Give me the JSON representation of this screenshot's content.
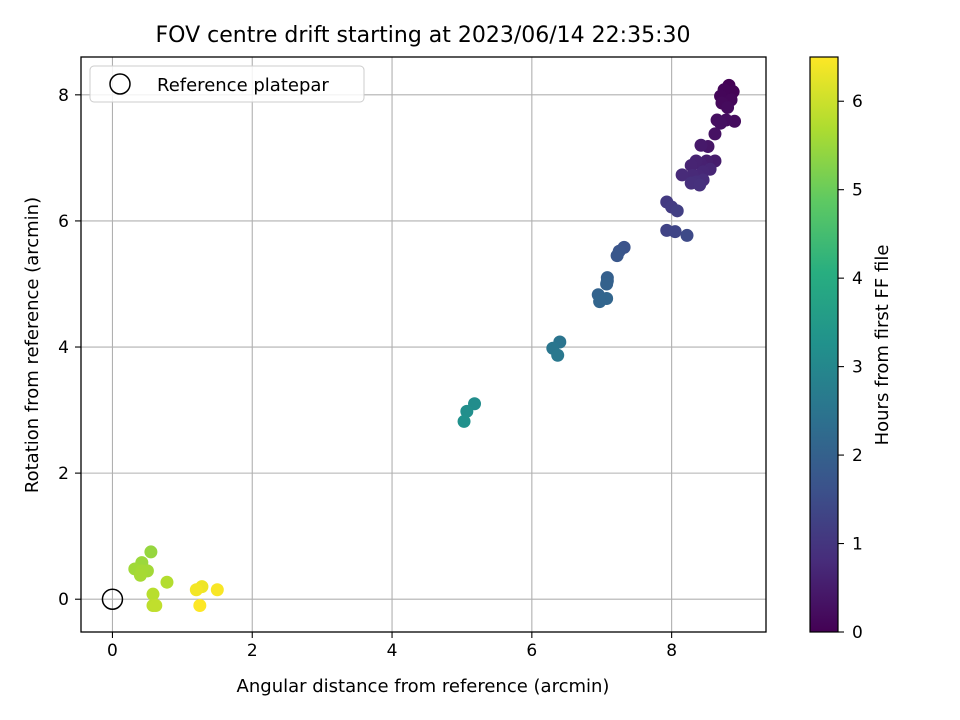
{
  "chart_data": {
    "type": "scatter",
    "title": "FOV centre drift starting at 2023/06/14 22:35:30",
    "xlabel": "Angular distance from reference (arcmin)",
    "ylabel": "Rotation from reference (arcmin)",
    "xlim": [
      -0.45,
      9.35
    ],
    "ylim": [
      -0.52,
      8.6
    ],
    "xticks": [
      0,
      2,
      4,
      6,
      8
    ],
    "yticks": [
      0,
      2,
      4,
      6,
      8
    ],
    "grid": true,
    "legend": {
      "position": "upper-left",
      "label": "Reference platepar"
    },
    "reference_point": {
      "x": 0,
      "y": 0
    },
    "colorbar": {
      "label": "Hours from first FF file",
      "range": [
        0,
        6.5
      ],
      "ticks": [
        0,
        1,
        2,
        3,
        4,
        5,
        6
      ],
      "colormap": "viridis"
    },
    "series": [
      {
        "points": [
          {
            "x": 8.82,
            "y": 8.15,
            "c": 0.02
          },
          {
            "x": 8.88,
            "y": 8.05,
            "c": 0.05
          },
          {
            "x": 8.75,
            "y": 8.08,
            "c": 0.08
          },
          {
            "x": 8.7,
            "y": 7.98,
            "c": 0.1
          },
          {
            "x": 8.85,
            "y": 7.92,
            "c": 0.12
          },
          {
            "x": 8.72,
            "y": 7.87,
            "c": 0.15
          },
          {
            "x": 8.8,
            "y": 7.8,
            "c": 0.18
          },
          {
            "x": 8.9,
            "y": 7.58,
            "c": 0.2
          },
          {
            "x": 8.78,
            "y": 7.6,
            "c": 0.22
          },
          {
            "x": 8.65,
            "y": 7.6,
            "c": 0.25
          },
          {
            "x": 8.7,
            "y": 7.55,
            "c": 0.28
          },
          {
            "x": 8.62,
            "y": 7.38,
            "c": 0.32
          },
          {
            "x": 8.52,
            "y": 7.18,
            "c": 0.38
          },
          {
            "x": 8.42,
            "y": 7.2,
            "c": 0.45
          },
          {
            "x": 8.62,
            "y": 6.95,
            "c": 0.5
          },
          {
            "x": 8.5,
            "y": 6.95,
            "c": 0.55
          },
          {
            "x": 8.42,
            "y": 6.9,
            "c": 0.6
          },
          {
            "x": 8.35,
            "y": 6.95,
            "c": 0.62
          },
          {
            "x": 8.28,
            "y": 6.88,
            "c": 0.65
          },
          {
            "x": 8.55,
            "y": 6.82,
            "c": 0.68
          },
          {
            "x": 8.45,
            "y": 6.78,
            "c": 0.7
          },
          {
            "x": 8.38,
            "y": 6.72,
            "c": 0.72
          },
          {
            "x": 8.3,
            "y": 6.72,
            "c": 0.75
          },
          {
            "x": 8.15,
            "y": 6.73,
            "c": 0.78
          },
          {
            "x": 8.45,
            "y": 6.65,
            "c": 0.82
          },
          {
            "x": 8.35,
            "y": 6.62,
            "c": 0.85
          },
          {
            "x": 8.28,
            "y": 6.6,
            "c": 0.88
          },
          {
            "x": 8.4,
            "y": 6.57,
            "c": 0.9
          },
          {
            "x": 7.93,
            "y": 6.3,
            "c": 1.1
          },
          {
            "x": 8.0,
            "y": 6.22,
            "c": 1.15
          },
          {
            "x": 8.08,
            "y": 6.16,
            "c": 1.2
          },
          {
            "x": 7.93,
            "y": 5.85,
            "c": 1.3
          },
          {
            "x": 8.05,
            "y": 5.83,
            "c": 1.35
          },
          {
            "x": 8.22,
            "y": 5.77,
            "c": 1.45
          },
          {
            "x": 7.32,
            "y": 5.58,
            "c": 1.65
          },
          {
            "x": 7.25,
            "y": 5.52,
            "c": 1.7
          },
          {
            "x": 7.22,
            "y": 5.45,
            "c": 1.75
          },
          {
            "x": 7.08,
            "y": 5.1,
            "c": 1.95
          },
          {
            "x": 7.08,
            "y": 5.05,
            "c": 1.97
          },
          {
            "x": 7.07,
            "y": 5.0,
            "c": 2.0
          },
          {
            "x": 6.95,
            "y": 4.83,
            "c": 2.05
          },
          {
            "x": 7.07,
            "y": 4.77,
            "c": 2.1
          },
          {
            "x": 6.97,
            "y": 4.72,
            "c": 2.12
          },
          {
            "x": 6.4,
            "y": 4.08,
            "c": 2.5
          },
          {
            "x": 6.3,
            "y": 3.98,
            "c": 2.55
          },
          {
            "x": 6.37,
            "y": 3.87,
            "c": 2.6
          },
          {
            "x": 5.18,
            "y": 3.1,
            "c": 3.15
          },
          {
            "x": 5.07,
            "y": 2.98,
            "c": 3.2
          },
          {
            "x": 5.03,
            "y": 2.82,
            "c": 3.25
          },
          {
            "x": 0.55,
            "y": 0.75,
            "c": 5.45
          },
          {
            "x": 0.42,
            "y": 0.58,
            "c": 5.5
          },
          {
            "x": 0.32,
            "y": 0.48,
            "c": 5.55
          },
          {
            "x": 0.5,
            "y": 0.45,
            "c": 5.58
          },
          {
            "x": 0.42,
            "y": 0.45,
            "c": 5.6
          },
          {
            "x": 0.4,
            "y": 0.38,
            "c": 5.62
          },
          {
            "x": 0.78,
            "y": 0.27,
            "c": 5.75
          },
          {
            "x": 0.58,
            "y": 0.08,
            "c": 5.8
          },
          {
            "x": 0.58,
            "y": -0.1,
            "c": 5.85
          },
          {
            "x": 0.62,
            "y": -0.1,
            "c": 5.88
          },
          {
            "x": 1.28,
            "y": 0.2,
            "c": 6.35
          },
          {
            "x": 1.2,
            "y": 0.15,
            "c": 6.4
          },
          {
            "x": 1.5,
            "y": 0.15,
            "c": 6.45
          },
          {
            "x": 1.25,
            "y": -0.1,
            "c": 6.5
          }
        ]
      }
    ]
  }
}
